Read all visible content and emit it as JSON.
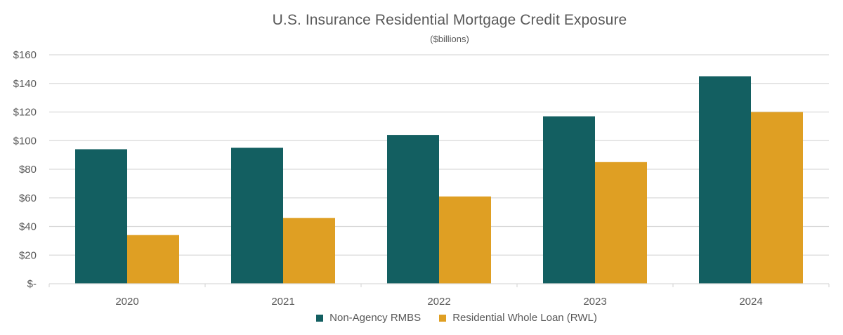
{
  "chart_data": {
    "type": "bar",
    "title": "U.S. Insurance Residential Mortgage Credit Exposure",
    "subtitle": "($billions)",
    "xlabel": "",
    "ylabel": "",
    "categories": [
      "2020",
      "2021",
      "2022",
      "2023",
      "2024"
    ],
    "series": [
      {
        "name": "Non-Agency RMBS",
        "color": "#135F61",
        "values": [
          94,
          95,
          104,
          117,
          145
        ]
      },
      {
        "name": "Residential Whole Loan (RWL)",
        "color": "#DF9F23",
        "values": [
          34,
          46,
          61,
          85,
          120
        ]
      }
    ],
    "ylim": [
      0,
      160
    ],
    "yticks": [
      0,
      20,
      40,
      60,
      80,
      100,
      120,
      140,
      160
    ],
    "ytick_labels": [
      "$-",
      "$20",
      "$40",
      "$60",
      "$80",
      "$100",
      "$120",
      "$140",
      "$160"
    ],
    "grid": true,
    "legend_position": "bottom"
  },
  "colors": {
    "gridline": "#D9D9D9",
    "text": "#595959"
  }
}
